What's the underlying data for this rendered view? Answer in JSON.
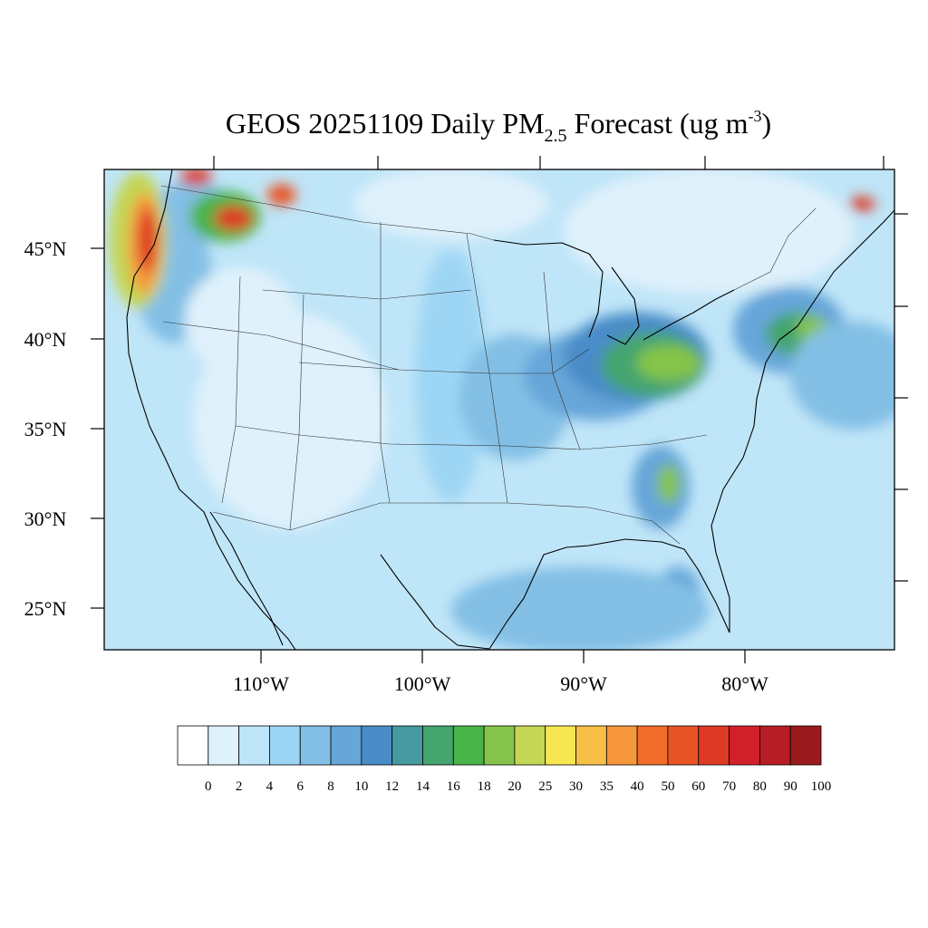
{
  "title": {
    "main": "GEOS 20251109 Daily PM",
    "subscript": "2.5",
    "rest": " Forecast (ug m",
    "superscript": "-3",
    "close": ")"
  },
  "map": {
    "lat_labels": [
      "45°N",
      "40°N",
      "35°N",
      "30°N",
      "25°N"
    ],
    "lon_labels": [
      "110°W",
      "100°W",
      "90°W",
      "80°W"
    ]
  },
  "colorbar": {
    "labels": [
      "0",
      "2",
      "4",
      "6",
      "8",
      "10",
      "12",
      "14",
      "16",
      "18",
      "20",
      "25",
      "30",
      "35",
      "40",
      "50",
      "60",
      "70",
      "80",
      "90",
      "100"
    ],
    "colors": [
      "#ffffff",
      "#dff1fb",
      "#bfe5f8",
      "#9dd6f4",
      "#83bfe5",
      "#66a6d9",
      "#4a8cc8",
      "#46999e",
      "#44a56e",
      "#49b447",
      "#85c44a",
      "#c4d655",
      "#f7e652",
      "#f8bf46",
      "#f7973c",
      "#f26c2a",
      "#e95427",
      "#dd3a25",
      "#d2202a",
      "#b71d24",
      "#9b1a1d"
    ]
  },
  "chart_data": {
    "type": "heatmap",
    "title": "GEOS 20251109 Daily PM2.5 Forecast (ug m-3)",
    "xlim": [
      -119.5,
      -70.5
    ],
    "ylim": [
      22.8,
      49.4
    ],
    "xticks": [
      -110,
      -100,
      -90,
      -80
    ],
    "yticks": [
      45,
      40,
      35,
      30,
      25
    ],
    "colorbar_levels": [
      0,
      2,
      4,
      6,
      8,
      10,
      12,
      14,
      16,
      18,
      20,
      25,
      30,
      35,
      40,
      50,
      60,
      70,
      80,
      90,
      100
    ],
    "background": "#bfe5f8",
    "regions": [
      {
        "lon": -115.2,
        "lat": 43.3,
        "rx": 2.4,
        "ry": 3.5,
        "color": "#83bfe5"
      },
      {
        "lon": -108,
        "lat": 35.5,
        "rx": 6,
        "ry": 6,
        "color": "#dff1fb"
      },
      {
        "lon": -111,
        "lat": 41,
        "rx": 3.5,
        "ry": 3,
        "color": "#dff1fb"
      },
      {
        "lon": -98,
        "lat": 38,
        "rx": 2.2,
        "ry": 7,
        "color": "#9dd6f4"
      },
      {
        "lon": -94,
        "lat": 36.8,
        "rx": 3.5,
        "ry": 3.5,
        "color": "#83bfe5"
      },
      {
        "lon": -89,
        "lat": 38,
        "rx": 4.5,
        "ry": 2.5,
        "color": "#66a6d9"
      },
      {
        "lon": -86.5,
        "lat": 39,
        "rx": 4.5,
        "ry": 2.5,
        "color": "#4a8cc8"
      },
      {
        "lon": -85.5,
        "lat": 38.6,
        "rx": 3.2,
        "ry": 1.8,
        "color": "#44a56e"
      },
      {
        "lon": -84.5,
        "lat": 38.7,
        "rx": 2,
        "ry": 1,
        "color": "#85c44a"
      },
      {
        "lon": -77,
        "lat": 40.5,
        "rx": 3.5,
        "ry": 2.4,
        "color": "#66a6d9"
      },
      {
        "lon": -76.5,
        "lat": 40.3,
        "rx": 2,
        "ry": 1.2,
        "color": "#44a56e"
      },
      {
        "lon": -75.6,
        "lat": 40.6,
        "rx": 1,
        "ry": 0.7,
        "color": "#85c44a"
      },
      {
        "lon": -73,
        "lat": 38,
        "rx": 4,
        "ry": 3,
        "color": "#83bfe5"
      },
      {
        "lon": -85,
        "lat": 31.8,
        "rx": 1.8,
        "ry": 2.3,
        "color": "#66a6d9"
      },
      {
        "lon": -84.5,
        "lat": 32,
        "rx": 0.7,
        "ry": 1.1,
        "color": "#85c44a"
      },
      {
        "lon": -83.9,
        "lat": 25.8,
        "rx": 1.4,
        "ry": 1.6,
        "color": "#66a6d9"
      },
      {
        "lon": -90,
        "lat": 25,
        "rx": 8,
        "ry": 2.4,
        "color": "#83bfe5"
      },
      {
        "lon": -82,
        "lat": 46,
        "rx": 9,
        "ry": 3.5,
        "color": "#dff1fb"
      },
      {
        "lon": -98,
        "lat": 47.5,
        "rx": 6,
        "ry": 2,
        "color": "#dff1fb"
      },
      {
        "lon": -114,
        "lat": 47,
        "rx": 2.5,
        "ry": 1.8,
        "color": "#83bfe5"
      },
      {
        "lon": -112,
        "lat": 46.8,
        "rx": 2.2,
        "ry": 1.4,
        "color": "#49b447"
      },
      {
        "lon": -111.5,
        "lat": 46.7,
        "rx": 1.2,
        "ry": 0.7,
        "color": "#dd3a25"
      },
      {
        "lon": -117.4,
        "lat": 45.5,
        "rx": 1.8,
        "ry": 3.8,
        "color": "#c4d655"
      },
      {
        "lon": -117,
        "lat": 45.3,
        "rx": 1,
        "ry": 2.8,
        "color": "#f7973c"
      },
      {
        "lon": -116.8,
        "lat": 45.5,
        "rx": 0.6,
        "ry": 1.8,
        "color": "#dd3a25"
      },
      {
        "lon": -113.8,
        "lat": 49,
        "rx": 1,
        "ry": 0.5,
        "color": "#dd3a25"
      },
      {
        "lon": -108.5,
        "lat": 48,
        "rx": 0.9,
        "ry": 0.6,
        "color": "#e95427"
      },
      {
        "lon": -72.5,
        "lat": 47.5,
        "rx": 0.8,
        "ry": 0.4,
        "color": "#dd3a25"
      }
    ]
  }
}
